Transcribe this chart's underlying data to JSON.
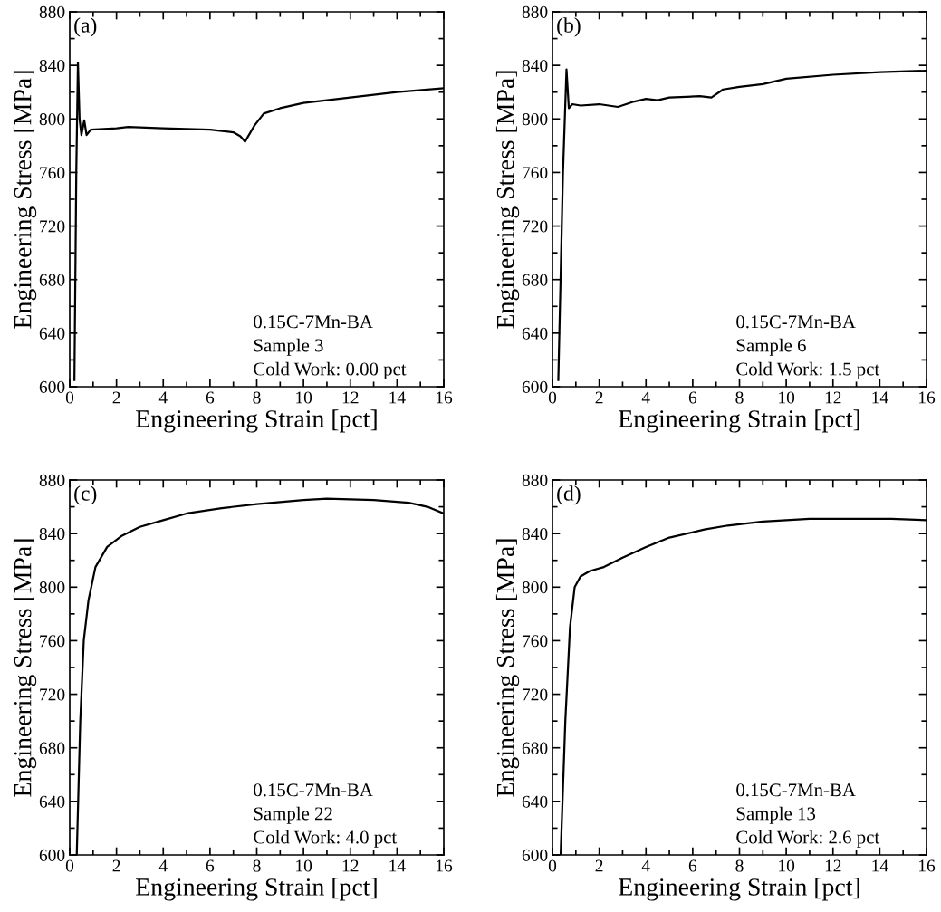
{
  "chart_data": [
    {
      "type": "line",
      "title": "(a)",
      "xlabel": "Engineering Strain [pct]",
      "ylabel": "Engineering Stress [MPa]",
      "annotations": [
        "0.15C-7Mn-BA",
        "Sample 3",
        "Cold Work: 0.00 pct"
      ],
      "xlim": [
        0,
        16
      ],
      "ylim": [
        600,
        880
      ],
      "xticks": [
        0,
        2,
        4,
        6,
        8,
        10,
        12,
        14,
        16
      ],
      "yticks": [
        600,
        640,
        680,
        720,
        760,
        800,
        840,
        880
      ],
      "series": [
        {
          "color": "#000000",
          "x": [
            0.2,
            0.28,
            0.35,
            0.42,
            0.5,
            0.62,
            0.72,
            0.9,
            2,
            2.5,
            4,
            6,
            7,
            7.3,
            7.5,
            7.9,
            8.3,
            9,
            10,
            12,
            14,
            16
          ],
          "values": [
            605,
            760,
            842,
            800,
            788,
            799,
            788,
            792,
            793,
            794,
            793,
            792,
            790,
            787,
            783,
            795,
            804,
            808,
            812,
            816,
            820,
            823
          ]
        }
      ]
    },
    {
      "type": "line",
      "title": "(b)",
      "xlabel": "Engineering Strain [pct]",
      "ylabel": "Engineering Stress [MPa]",
      "annotations": [
        "0.15C-7Mn-BA",
        "Sample 6",
        "Cold Work: 1.5 pct"
      ],
      "xlim": [
        0,
        16
      ],
      "ylim": [
        600,
        880
      ],
      "xticks": [
        0,
        2,
        4,
        6,
        8,
        10,
        12,
        14,
        16
      ],
      "yticks": [
        600,
        640,
        680,
        720,
        760,
        800,
        840,
        880
      ],
      "series": [
        {
          "color": "#000000",
          "x": [
            0.25,
            0.45,
            0.6,
            0.7,
            0.85,
            1.2,
            2,
            2.8,
            3.5,
            4,
            4.5,
            5,
            6.3,
            6.8,
            7.3,
            8,
            9,
            10,
            12,
            14,
            16
          ],
          "values": [
            605,
            760,
            837,
            808,
            811,
            810,
            811,
            809,
            813,
            815,
            814,
            816,
            817,
            816,
            822,
            824,
            826,
            830,
            833,
            835,
            836
          ]
        }
      ]
    },
    {
      "type": "line",
      "title": "(c)",
      "xlabel": "Engineering Strain [pct]",
      "ylabel": "Engineering Stress [MPa]",
      "annotations": [
        "0.15C-7Mn-BA",
        "Sample 22",
        "Cold Work: 4.0 pct"
      ],
      "xlim": [
        0,
        16
      ],
      "ylim": [
        600,
        880
      ],
      "xticks": [
        0,
        2,
        4,
        6,
        8,
        10,
        12,
        14,
        16
      ],
      "yticks": [
        600,
        640,
        680,
        720,
        760,
        800,
        840,
        880
      ],
      "series": [
        {
          "color": "#000000",
          "x": [
            0.3,
            0.45,
            0.6,
            0.8,
            1.1,
            1.6,
            2.2,
            3,
            4,
            5,
            6.5,
            8,
            10,
            11,
            13,
            14.5,
            15.3,
            16
          ],
          "values": [
            600,
            700,
            760,
            790,
            815,
            830,
            838,
            845,
            850,
            855,
            859,
            862,
            865,
            866,
            865,
            863,
            860,
            855
          ]
        }
      ]
    },
    {
      "type": "line",
      "title": "(d)",
      "xlabel": "Engineering Strain [pct]",
      "ylabel": "Engineering Stress [MPa]",
      "annotations": [
        "0.15C-7Mn-BA",
        "Sample 13",
        "Cold Work: 2.6 pct"
      ],
      "xlim": [
        0,
        16
      ],
      "ylim": [
        600,
        880
      ],
      "xticks": [
        0,
        2,
        4,
        6,
        8,
        10,
        12,
        14,
        16
      ],
      "yticks": [
        600,
        640,
        680,
        720,
        760,
        800,
        840,
        880
      ],
      "series": [
        {
          "color": "#000000",
          "x": [
            0.35,
            0.55,
            0.75,
            0.95,
            1.2,
            1.6,
            2.2,
            3,
            4,
            5,
            6.5,
            7.5,
            9,
            11,
            13,
            14.5,
            16
          ],
          "values": [
            600,
            700,
            770,
            800,
            808,
            812,
            815,
            822,
            830,
            837,
            843,
            846,
            849,
            851,
            851,
            851,
            850
          ]
        }
      ]
    }
  ]
}
